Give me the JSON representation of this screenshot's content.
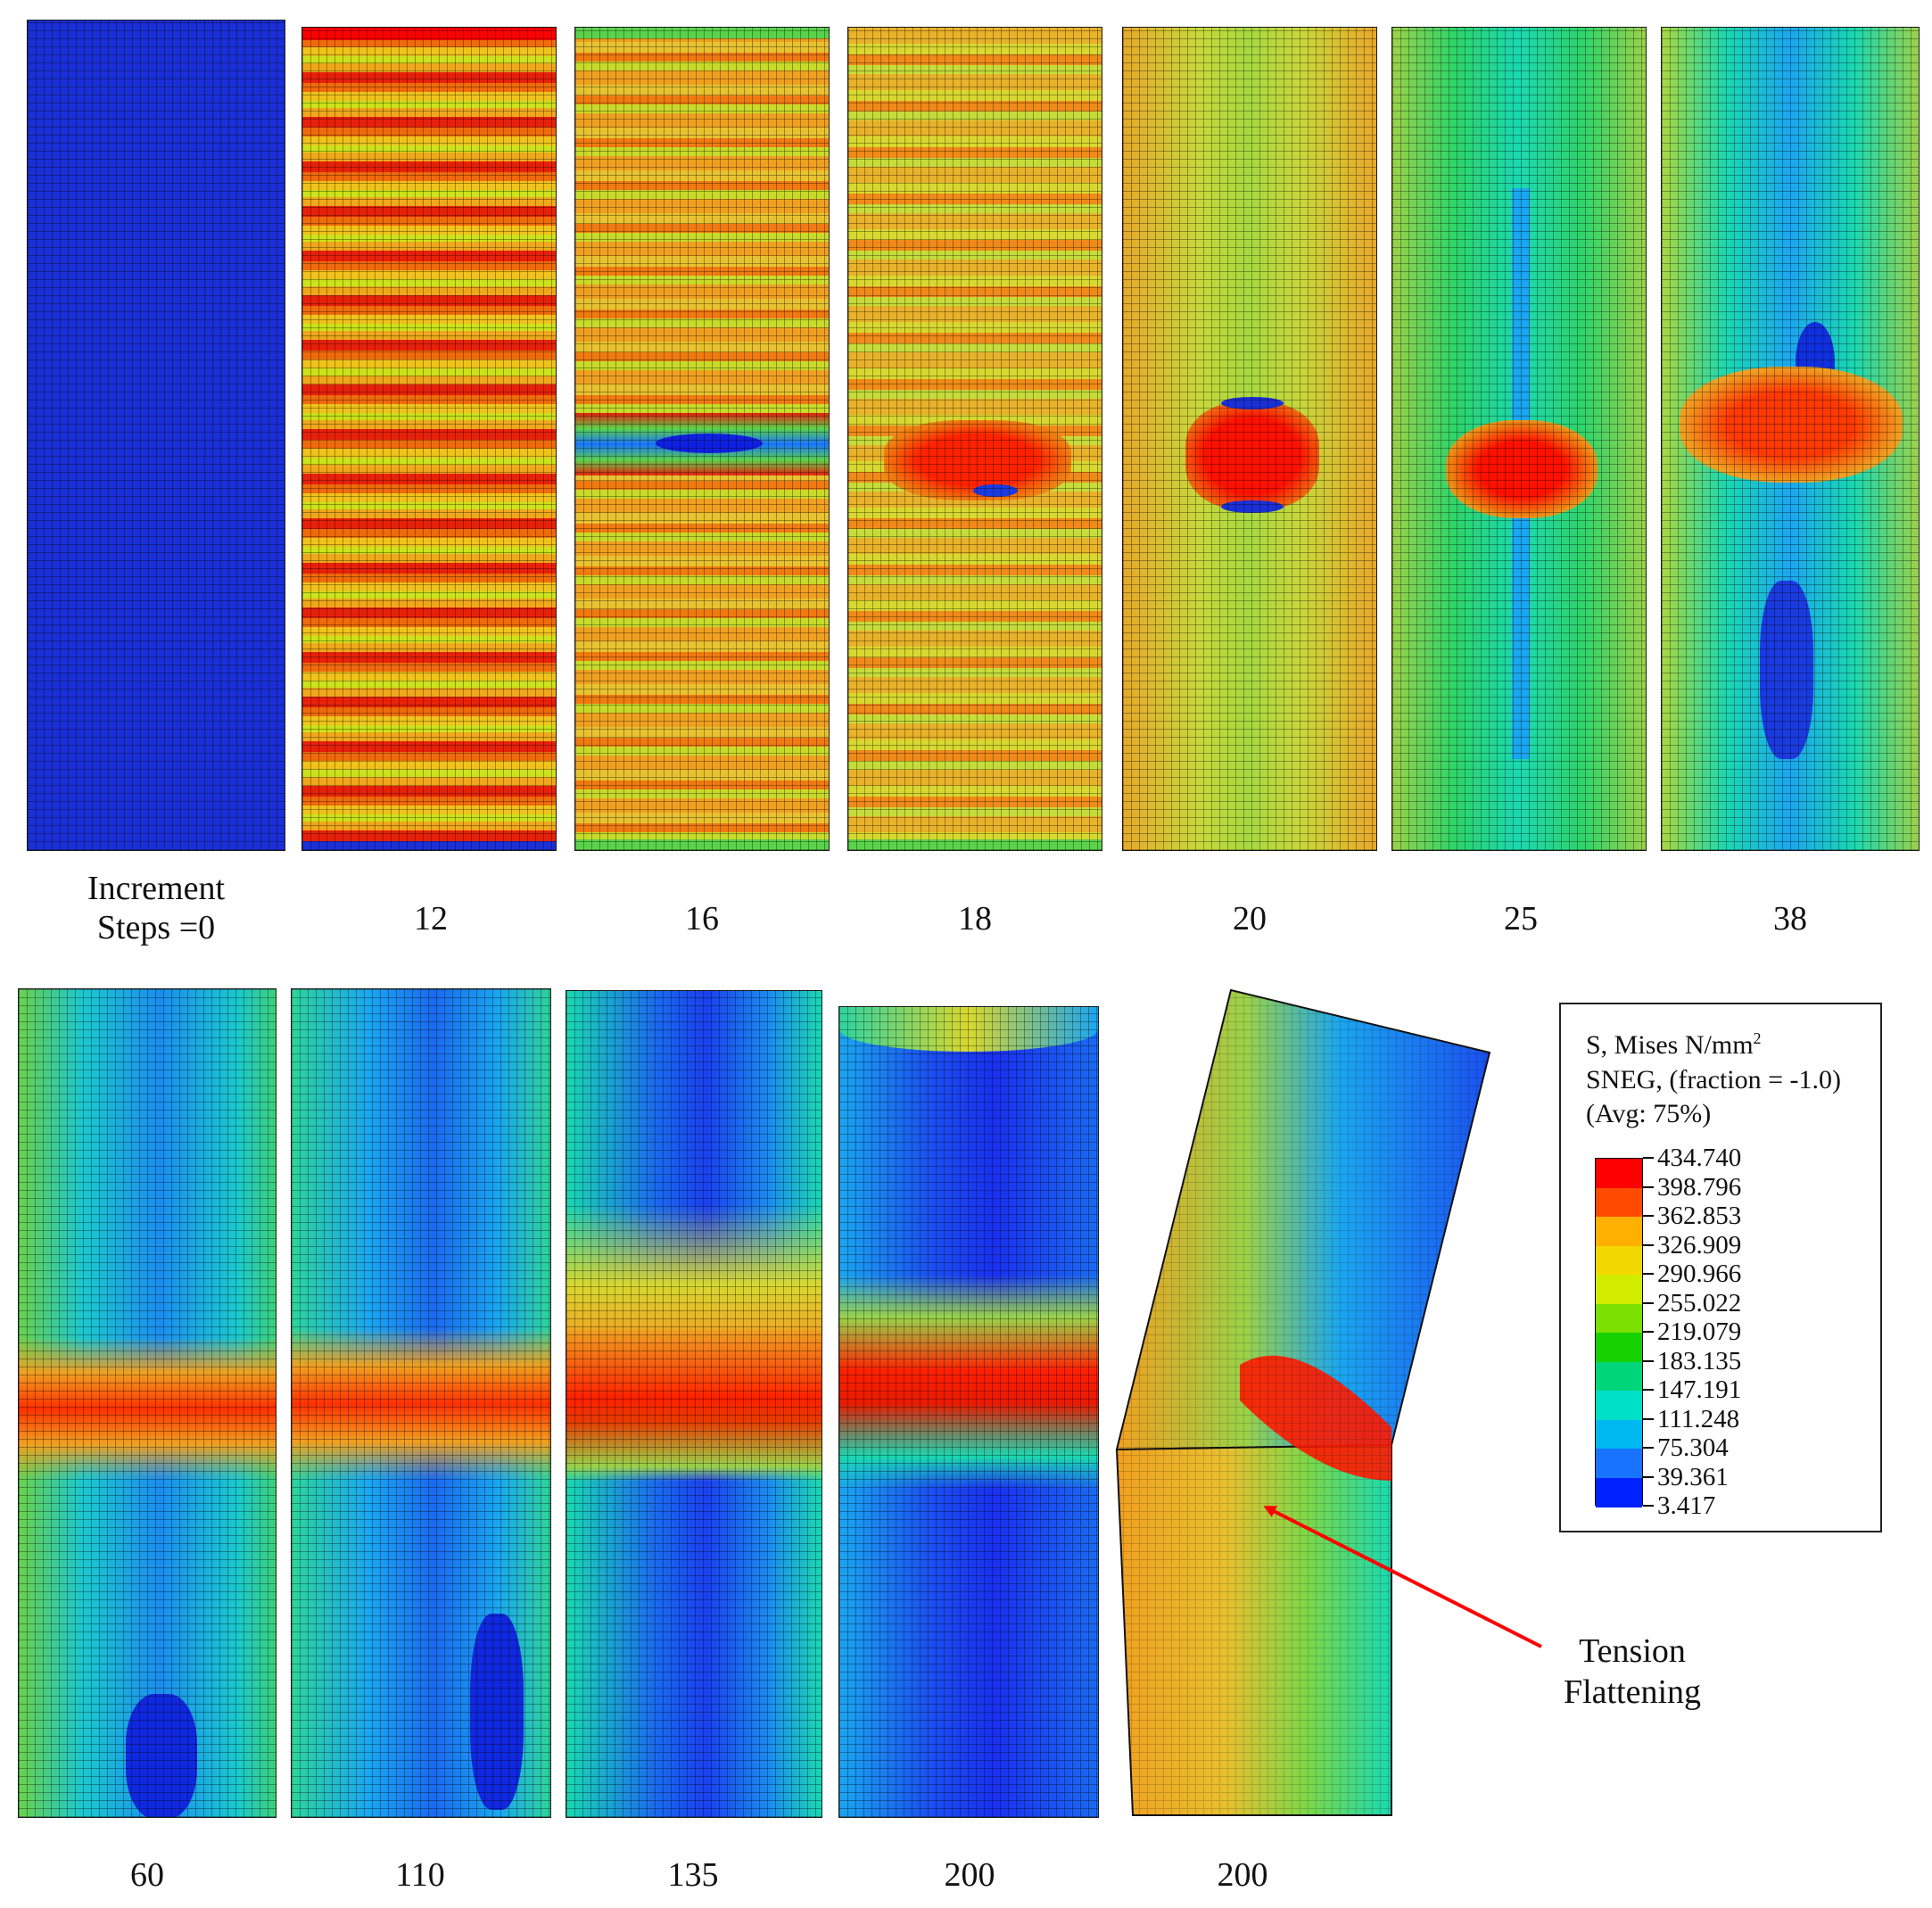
{
  "captions": {
    "top": [
      "Increment\nSteps =0",
      "12",
      "16",
      "18",
      "20",
      "25",
      "38"
    ],
    "bottom": [
      "60",
      "110",
      "135",
      "200",
      "200"
    ]
  },
  "legend": {
    "title_line1": "S, Mises N/mm",
    "title_sup": "2",
    "title_line2": "SNEG, (fraction = -1.0)",
    "title_line3": "(Avg: 75%)",
    "values": [
      "434.740",
      "398.796",
      "362.853",
      "326.909",
      "290.966",
      "255.022",
      "219.079",
      "183.135",
      "147.191",
      "111.248",
      "75.304",
      "39.361",
      "3.417"
    ],
    "colors": [
      "#ff0000",
      "#ff4a00",
      "#ffb000",
      "#f2d800",
      "#d2ec00",
      "#7ae000",
      "#16d000",
      "#00d57a",
      "#00e0c8",
      "#00b8f0",
      "#1874ff",
      "#0020ff"
    ]
  },
  "annotation": {
    "text": "Tension\nFlattening",
    "arrow_color": "#ff0000"
  }
}
